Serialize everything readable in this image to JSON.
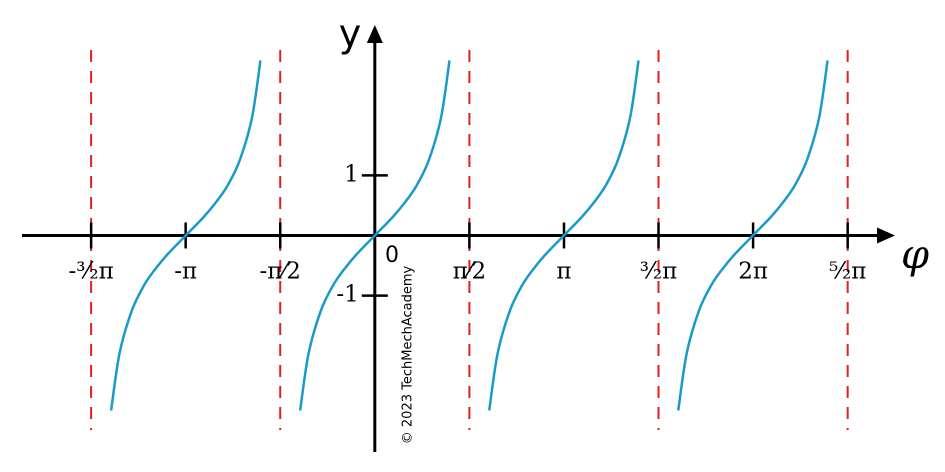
{
  "chart_data": {
    "type": "line",
    "x_label": "φ",
    "y_label": "y",
    "origin_label": "0",
    "watermark": "© 2023 TechMechAcademy",
    "xlim": [
      -5.86,
      8.64
    ],
    "ylim": [
      -3.6,
      3.5
    ],
    "xticks": [
      {
        "value": -4.712,
        "label": "-³⁄₂π"
      },
      {
        "value": -3.142,
        "label": "-π"
      },
      {
        "value": -1.571,
        "label": "-π⁄2"
      },
      {
        "value": 1.571,
        "label": "π⁄2"
      },
      {
        "value": 3.142,
        "label": "π"
      },
      {
        "value": 4.712,
        "label": "³⁄₂π"
      },
      {
        "value": 6.283,
        "label": "2π"
      },
      {
        "value": 7.854,
        "label": "⁵⁄₂π"
      }
    ],
    "yticks": [
      1,
      -1
    ],
    "asymptotes": [
      -4.712,
      -1.571,
      1.571,
      4.712,
      7.854
    ],
    "asymptote_color": "#e02020",
    "series": [
      {
        "color": "#1a9ac9",
        "x": [
          -4.38,
          -4.24,
          -4.04,
          -3.84,
          -3.64,
          -3.44,
          -3.14,
          -2.84,
          -2.64,
          -2.44,
          -2.24,
          -2.04,
          -1.9
        ],
        "values": [
          -2.91,
          -1.96,
          -1.26,
          -0.84,
          -0.55,
          -0.31,
          0,
          0.31,
          0.55,
          0.84,
          1.26,
          1.96,
          2.91
        ]
      },
      {
        "color": "#1a9ac9",
        "x": [
          -1.24,
          -1.1,
          -0.9,
          -0.7,
          -0.5,
          -0.3,
          0,
          0.3,
          0.5,
          0.7,
          0.9,
          1.1,
          1.24
        ],
        "values": [
          -2.91,
          -1.96,
          -1.26,
          -0.84,
          -0.55,
          -0.31,
          0,
          0.31,
          0.55,
          0.84,
          1.26,
          1.96,
          2.91
        ]
      },
      {
        "color": "#1a9ac9",
        "x": [
          1.9,
          2.04,
          2.24,
          2.44,
          2.64,
          2.84,
          3.14,
          3.44,
          3.64,
          3.84,
          4.04,
          4.24,
          4.38
        ],
        "values": [
          -2.91,
          -1.96,
          -1.26,
          -0.84,
          -0.55,
          -0.31,
          0,
          0.31,
          0.55,
          0.84,
          1.26,
          1.96,
          2.91
        ]
      },
      {
        "color": "#1a9ac9",
        "x": [
          5.04,
          5.18,
          5.38,
          5.58,
          5.78,
          5.98,
          6.28,
          6.58,
          6.78,
          6.98,
          7.18,
          7.38,
          7.52
        ],
        "values": [
          -2.91,
          -1.96,
          -1.26,
          -0.84,
          -0.55,
          -0.31,
          0,
          0.31,
          0.55,
          0.84,
          1.26,
          1.96,
          2.91
        ]
      }
    ]
  }
}
